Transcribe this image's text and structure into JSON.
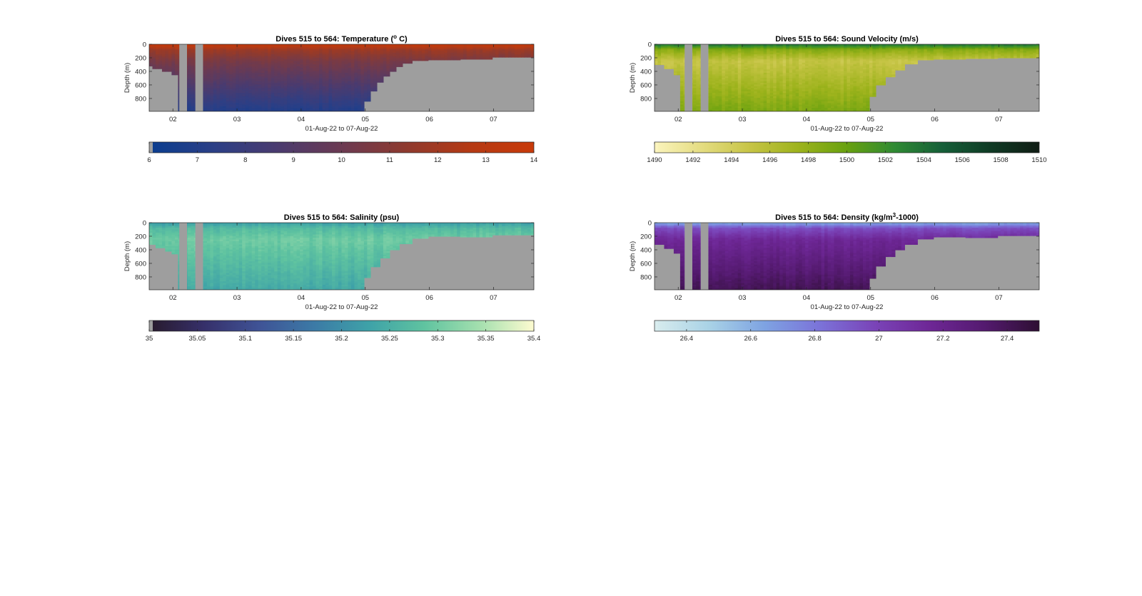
{
  "figure": {
    "background": "#ffffff",
    "mask_color": "#9e9e9e"
  },
  "chart_data": [
    {
      "type": "heatmap",
      "id": "temperature",
      "title": "Dives 515 to 564: Temperature (° C)",
      "title_parts": {
        "before": "Dives 515 to 564: Temperature (",
        "sup": "o",
        "after": " C)"
      },
      "xlabel": "01-Aug-22 to 07-Aug-22",
      "ylabel": "Depth (m)",
      "x_ticks": [
        "02",
        "03",
        "04",
        "05",
        "06",
        "07"
      ],
      "y_ticks": [
        0,
        200,
        400,
        600,
        800
      ],
      "xlim_days": [
        1.63,
        7.63
      ],
      "ylim": [
        0,
        990
      ],
      "y_reversed": true,
      "colormap": [
        "#0a3d8f",
        "#2b3f86",
        "#4a3b6f",
        "#6b3a52",
        "#8e3a2f",
        "#b53a14",
        "#c83a0a"
      ],
      "colorbar": {
        "ticks": [
          "6",
          "7",
          "8",
          "9",
          "10",
          "11",
          "12",
          "13",
          "14"
        ],
        "min": 6,
        "max": 14,
        "under_color": "#9e9e9e"
      },
      "bottom_depth_profile": [
        {
          "x": 1.63,
          "depth": 320
        },
        {
          "x": 1.7,
          "depth": 360
        },
        {
          "x": 1.85,
          "depth": 400
        },
        {
          "x": 2.0,
          "depth": 450
        },
        {
          "x": 2.1,
          "depth": 990
        },
        {
          "x": 2.22,
          "depth": 990
        },
        {
          "x": 2.35,
          "depth": 990
        },
        {
          "x": 2.47,
          "depth": 990
        },
        {
          "x": 4.5,
          "depth": 990
        },
        {
          "x": 4.95,
          "depth": 990
        },
        {
          "x": 5.0,
          "depth": 840
        },
        {
          "x": 5.1,
          "depth": 690
        },
        {
          "x": 5.2,
          "depth": 560
        },
        {
          "x": 5.3,
          "depth": 470
        },
        {
          "x": 5.4,
          "depth": 400
        },
        {
          "x": 5.5,
          "depth": 330
        },
        {
          "x": 5.6,
          "depth": 280
        },
        {
          "x": 5.75,
          "depth": 240
        },
        {
          "x": 6.0,
          "depth": 230
        },
        {
          "x": 6.5,
          "depth": 220
        },
        {
          "x": 7.0,
          "depth": 190
        },
        {
          "x": 7.63,
          "depth": 180
        }
      ],
      "data_gaps": [
        {
          "x0": 2.1,
          "x1": 2.22
        },
        {
          "x0": 2.35,
          "x1": 2.47
        }
      ],
      "value_profile": {
        "surface": 13.8,
        "mid": 10.5,
        "deep": 7.0
      }
    },
    {
      "type": "heatmap",
      "id": "sound_velocity",
      "title": "Dives 515 to 564: Sound Velocity (m/s)",
      "title_parts": {
        "before": "Dives 515 to 564: Sound Velocity (m/s)",
        "sup": "",
        "after": ""
      },
      "xlabel": "01-Aug-22 to 07-Aug-22",
      "ylabel": "Depth (m)",
      "x_ticks": [
        "02",
        "03",
        "04",
        "05",
        "06",
        "07"
      ],
      "y_ticks": [
        0,
        200,
        400,
        600,
        800
      ],
      "xlim_days": [
        1.63,
        7.63
      ],
      "ylim": [
        0,
        990
      ],
      "y_reversed": true,
      "colormap": [
        "#fbf4bd",
        "#e4dc80",
        "#c6c445",
        "#9db31c",
        "#68a10f",
        "#2f8a34",
        "#155e38",
        "#0f3a24",
        "#101c14"
      ],
      "colorbar": {
        "ticks": [
          "1490",
          "1492",
          "1494",
          "1496",
          "1498",
          "1500",
          "1502",
          "1504",
          "1506",
          "1508",
          "1510"
        ],
        "min": 1490,
        "max": 1510,
        "under_color": "#fbf4bd"
      },
      "bottom_depth_profile": [
        {
          "x": 1.63,
          "depth": 300
        },
        {
          "x": 1.8,
          "depth": 360
        },
        {
          "x": 1.95,
          "depth": 450
        },
        {
          "x": 2.05,
          "depth": 990
        },
        {
          "x": 4.95,
          "depth": 990
        },
        {
          "x": 5.0,
          "depth": 770
        },
        {
          "x": 5.1,
          "depth": 600
        },
        {
          "x": 5.25,
          "depth": 480
        },
        {
          "x": 5.4,
          "depth": 380
        },
        {
          "x": 5.55,
          "depth": 290
        },
        {
          "x": 5.75,
          "depth": 230
        },
        {
          "x": 6.0,
          "depth": 220
        },
        {
          "x": 6.5,
          "depth": 210
        },
        {
          "x": 7.0,
          "depth": 200
        },
        {
          "x": 7.63,
          "depth": 180
        }
      ],
      "data_gaps": [
        {
          "x0": 2.1,
          "x1": 2.22
        },
        {
          "x0": 2.35,
          "x1": 2.47
        }
      ],
      "value_profile": {
        "surface": 1504,
        "mid": 1495,
        "deep": 1499
      }
    },
    {
      "type": "heatmap",
      "id": "salinity",
      "title": "Dives 515 to 564: Salinity (psu)",
      "title_parts": {
        "before": "Dives 515 to 564: Salinity (psu)",
        "sup": "",
        "after": ""
      },
      "xlabel": "01-Aug-22 to 07-Aug-22",
      "ylabel": "Depth (m)",
      "x_ticks": [
        "02",
        "03",
        "04",
        "05",
        "06",
        "07"
      ],
      "y_ticks": [
        0,
        200,
        400,
        600,
        800
      ],
      "xlim_days": [
        1.63,
        7.63
      ],
      "ylim": [
        0,
        990
      ],
      "y_reversed": true,
      "colormap": [
        "#281a2c",
        "#36306a",
        "#3f5396",
        "#3c7aa6",
        "#3ea2a8",
        "#5fc3a0",
        "#a3dfae",
        "#fdfbd0"
      ],
      "colorbar": {
        "ticks": [
          "35",
          "35.05",
          "35.1",
          "35.15",
          "35.2",
          "35.25",
          "35.3",
          "35.35",
          "35.4"
        ],
        "min": 35,
        "max": 35.4,
        "under_color": "#9e9e9e"
      },
      "bottom_depth_profile": [
        {
          "x": 1.63,
          "depth": 320
        },
        {
          "x": 1.75,
          "depth": 370
        },
        {
          "x": 1.9,
          "depth": 420
        },
        {
          "x": 2.0,
          "depth": 460
        },
        {
          "x": 2.1,
          "depth": 990
        },
        {
          "x": 4.95,
          "depth": 990
        },
        {
          "x": 5.0,
          "depth": 810
        },
        {
          "x": 5.1,
          "depth": 650
        },
        {
          "x": 5.25,
          "depth": 520
        },
        {
          "x": 5.4,
          "depth": 400
        },
        {
          "x": 5.55,
          "depth": 310
        },
        {
          "x": 5.75,
          "depth": 230
        },
        {
          "x": 6.0,
          "depth": 200
        },
        {
          "x": 6.5,
          "depth": 210
        },
        {
          "x": 7.0,
          "depth": 180
        },
        {
          "x": 7.63,
          "depth": 170
        }
      ],
      "data_gaps": [
        {
          "x0": 2.1,
          "x1": 2.22
        },
        {
          "x0": 2.35,
          "x1": 2.47
        }
      ],
      "value_profile": {
        "surface": 35.22,
        "mid": 35.3,
        "deep": 35.24
      }
    },
    {
      "type": "heatmap",
      "id": "density",
      "title": "Dives 515 to 564: Density (kg/m³-1000)",
      "title_parts": {
        "before": "Dives 515 to 564: Density (kg/m",
        "sup": "3",
        "after": "-1000)"
      },
      "xlabel": "01-Aug-22 to 07-Aug-22",
      "ylabel": "Depth (m)",
      "x_ticks": [
        "02",
        "03",
        "04",
        "05",
        "06",
        "07"
      ],
      "y_ticks": [
        0,
        200,
        400,
        600,
        800
      ],
      "xlim_days": [
        1.63,
        7.63
      ],
      "ylim": [
        0,
        990
      ],
      "y_reversed": true,
      "colormap": [
        "#d8ecee",
        "#a9d2e6",
        "#7ea3e2",
        "#7b73d9",
        "#7a44b8",
        "#6e2796",
        "#541a6f",
        "#2e0f33"
      ],
      "colorbar": {
        "ticks": [
          "26.4",
          "26.6",
          "26.8",
          "27",
          "27.2",
          "27.4"
        ],
        "min": 26.3,
        "max": 27.5,
        "under_color": "#d8ecee"
      },
      "bottom_depth_profile": [
        {
          "x": 1.63,
          "depth": 320
        },
        {
          "x": 1.8,
          "depth": 380
        },
        {
          "x": 1.95,
          "depth": 450
        },
        {
          "x": 2.05,
          "depth": 990
        },
        {
          "x": 4.95,
          "depth": 990
        },
        {
          "x": 5.0,
          "depth": 820
        },
        {
          "x": 5.1,
          "depth": 640
        },
        {
          "x": 5.25,
          "depth": 500
        },
        {
          "x": 5.4,
          "depth": 400
        },
        {
          "x": 5.55,
          "depth": 320
        },
        {
          "x": 5.75,
          "depth": 240
        },
        {
          "x": 6.0,
          "depth": 210
        },
        {
          "x": 6.5,
          "depth": 220
        },
        {
          "x": 7.0,
          "depth": 190
        },
        {
          "x": 7.63,
          "depth": 170
        }
      ],
      "data_gaps": [
        {
          "x0": 2.1,
          "x1": 2.22
        },
        {
          "x0": 2.35,
          "x1": 2.47
        }
      ],
      "value_profile": {
        "surface": 26.6,
        "mid": 27.15,
        "deep": 27.4
      }
    }
  ]
}
